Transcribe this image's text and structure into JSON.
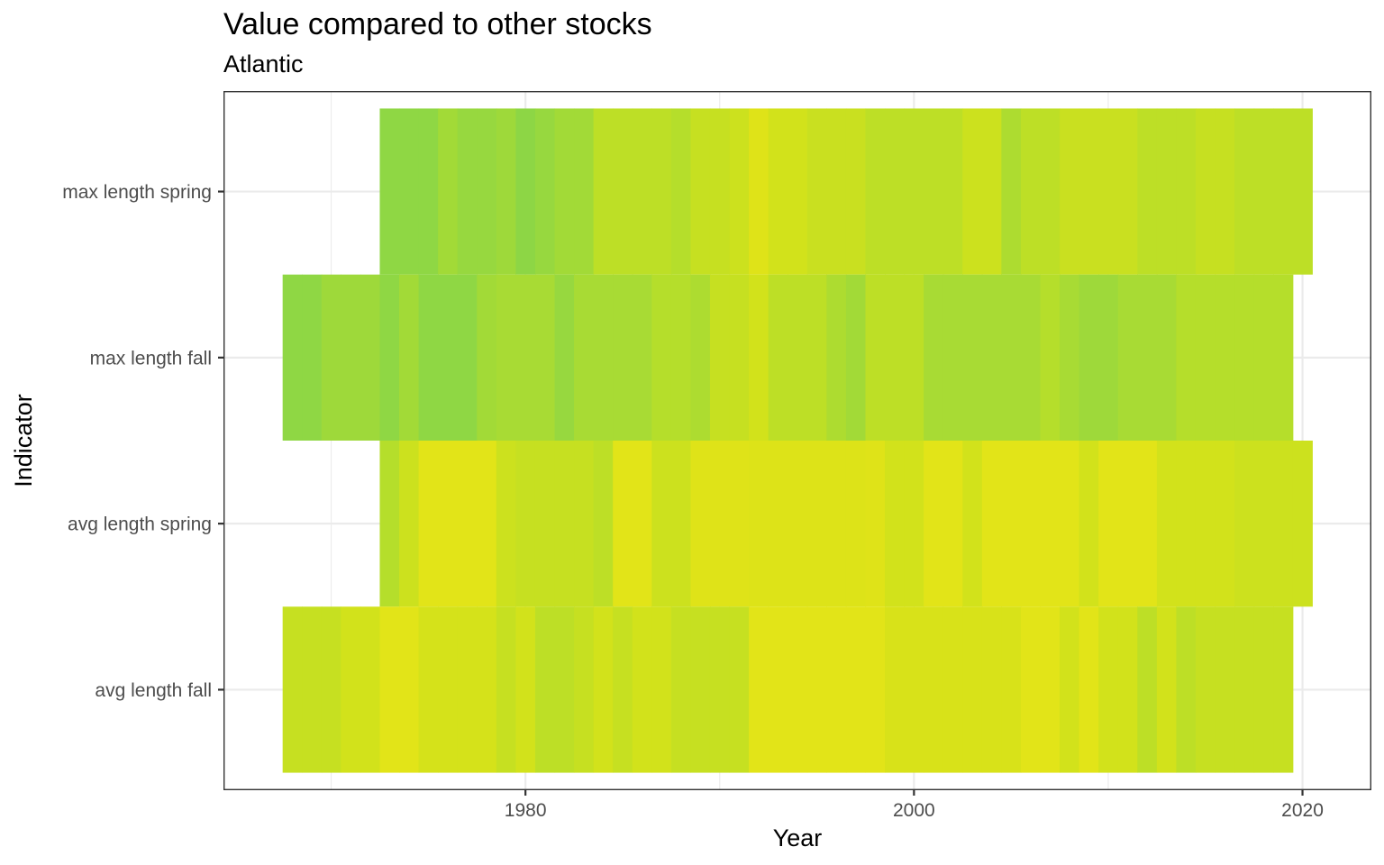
{
  "chart_data": {
    "type": "heatmap",
    "title": "Value compared to other stocks",
    "subtitle": "Atlantic",
    "xlabel": "Year",
    "ylabel": "Indicator",
    "xlim": [
      1964.5,
      2023.5
    ],
    "x_ticks": [
      1980,
      2000,
      2020
    ],
    "x_tick_labels": [
      "1980",
      "2000",
      "2020"
    ],
    "x_minor_ticks": [
      1970,
      1990,
      2010
    ],
    "y_categories": [
      "avg length fall",
      "avg length spring",
      "max length fall",
      "max length spring"
    ],
    "grid": true,
    "legend": "none",
    "series": [
      {
        "name": "max length spring",
        "cells": [
          {
            "year": 1973,
            "color": "#8fd744"
          },
          {
            "year": 1974,
            "color": "#8fd744"
          },
          {
            "year": 1975,
            "color": "#8fd744"
          },
          {
            "year": 1976,
            "color": "#a2da37"
          },
          {
            "year": 1977,
            "color": "#97d83f"
          },
          {
            "year": 1978,
            "color": "#97d83f"
          },
          {
            "year": 1979,
            "color": "#9ed93a"
          },
          {
            "year": 1980,
            "color": "#8dd645"
          },
          {
            "year": 1981,
            "color": "#97d83f"
          },
          {
            "year": 1982,
            "color": "#a2da37"
          },
          {
            "year": 1983,
            "color": "#a2da37"
          },
          {
            "year": 1984,
            "color": "#bddf26"
          },
          {
            "year": 1985,
            "color": "#bddf26"
          },
          {
            "year": 1986,
            "color": "#bddf26"
          },
          {
            "year": 1987,
            "color": "#bddf26"
          },
          {
            "year": 1988,
            "color": "#b5de2b"
          },
          {
            "year": 1989,
            "color": "#c6e021"
          },
          {
            "year": 1990,
            "color": "#c6e021"
          },
          {
            "year": 1991,
            "color": "#cce11e"
          },
          {
            "year": 1992,
            "color": "#dfe318"
          },
          {
            "year": 1993,
            "color": "#d2e21b"
          },
          {
            "year": 1994,
            "color": "#d2e21b"
          },
          {
            "year": 1995,
            "color": "#c9e020"
          },
          {
            "year": 1996,
            "color": "#c9e020"
          },
          {
            "year": 1997,
            "color": "#c9e020"
          },
          {
            "year": 1998,
            "color": "#bddf26"
          },
          {
            "year": 1999,
            "color": "#bddf26"
          },
          {
            "year": 2000,
            "color": "#bddf26"
          },
          {
            "year": 2001,
            "color": "#bddf26"
          },
          {
            "year": 2002,
            "color": "#bddf26"
          },
          {
            "year": 2003,
            "color": "#cce11e"
          },
          {
            "year": 2004,
            "color": "#cce11e"
          },
          {
            "year": 2005,
            "color": "#addc30"
          },
          {
            "year": 2006,
            "color": "#bddf26"
          },
          {
            "year": 2007,
            "color": "#bddf26"
          },
          {
            "year": 2008,
            "color": "#c9e020"
          },
          {
            "year": 2009,
            "color": "#c9e020"
          },
          {
            "year": 2010,
            "color": "#c9e020"
          },
          {
            "year": 2011,
            "color": "#c9e020"
          },
          {
            "year": 2012,
            "color": "#bddf26"
          },
          {
            "year": 2013,
            "color": "#bddf26"
          },
          {
            "year": 2014,
            "color": "#bddf26"
          },
          {
            "year": 2015,
            "color": "#c6e021"
          },
          {
            "year": 2016,
            "color": "#c6e021"
          },
          {
            "year": 2017,
            "color": "#bddf26"
          },
          {
            "year": 2018,
            "color": "#bddf26"
          },
          {
            "year": 2019,
            "color": "#bddf26"
          },
          {
            "year": 2020,
            "color": "#bddf26"
          }
        ]
      },
      {
        "name": "max length fall",
        "cells": [
          {
            "year": 1968,
            "color": "#8fd744"
          },
          {
            "year": 1969,
            "color": "#8fd744"
          },
          {
            "year": 1970,
            "color": "#9ed93a"
          },
          {
            "year": 1971,
            "color": "#9ed93a"
          },
          {
            "year": 1972,
            "color": "#9ed93a"
          },
          {
            "year": 1973,
            "color": "#8fd744"
          },
          {
            "year": 1974,
            "color": "#a2da37"
          },
          {
            "year": 1975,
            "color": "#8fd744"
          },
          {
            "year": 1976,
            "color": "#8fd744"
          },
          {
            "year": 1977,
            "color": "#8fd744"
          },
          {
            "year": 1978,
            "color": "#a2da37"
          },
          {
            "year": 1979,
            "color": "#a8db34"
          },
          {
            "year": 1980,
            "color": "#a8db34"
          },
          {
            "year": 1981,
            "color": "#a8db34"
          },
          {
            "year": 1982,
            "color": "#97d83f"
          },
          {
            "year": 1983,
            "color": "#a8db34"
          },
          {
            "year": 1984,
            "color": "#a8db34"
          },
          {
            "year": 1985,
            "color": "#a8db34"
          },
          {
            "year": 1986,
            "color": "#a8db34"
          },
          {
            "year": 1987,
            "color": "#b5de2b"
          },
          {
            "year": 1988,
            "color": "#b5de2b"
          },
          {
            "year": 1989,
            "color": "#addc30"
          },
          {
            "year": 1990,
            "color": "#c6e021"
          },
          {
            "year": 1991,
            "color": "#c6e021"
          },
          {
            "year": 1992,
            "color": "#d2e21b"
          },
          {
            "year": 1993,
            "color": "#bddf26"
          },
          {
            "year": 1994,
            "color": "#bddf26"
          },
          {
            "year": 1995,
            "color": "#bddf26"
          },
          {
            "year": 1996,
            "color": "#addc30"
          },
          {
            "year": 1997,
            "color": "#a2da37"
          },
          {
            "year": 1998,
            "color": "#bddf26"
          },
          {
            "year": 1999,
            "color": "#bddf26"
          },
          {
            "year": 2000,
            "color": "#bddf26"
          },
          {
            "year": 2001,
            "color": "#a8db34"
          },
          {
            "year": 2002,
            "color": "#a8db34"
          },
          {
            "year": 2003,
            "color": "#a8db34"
          },
          {
            "year": 2004,
            "color": "#a8db34"
          },
          {
            "year": 2005,
            "color": "#a8db34"
          },
          {
            "year": 2006,
            "color": "#a8db34"
          },
          {
            "year": 2007,
            "color": "#b5de2b"
          },
          {
            "year": 2008,
            "color": "#a8db34"
          },
          {
            "year": 2009,
            "color": "#9ed93a"
          },
          {
            "year": 2010,
            "color": "#9ed93a"
          },
          {
            "year": 2011,
            "color": "#a8db34"
          },
          {
            "year": 2012,
            "color": "#a8db34"
          },
          {
            "year": 2013,
            "color": "#a8db34"
          },
          {
            "year": 2014,
            "color": "#b5de2b"
          },
          {
            "year": 2015,
            "color": "#b5de2b"
          },
          {
            "year": 2016,
            "color": "#b5de2b"
          },
          {
            "year": 2017,
            "color": "#b5de2b"
          },
          {
            "year": 2018,
            "color": "#b5de2b"
          },
          {
            "year": 2019,
            "color": "#b5de2b"
          }
        ]
      },
      {
        "name": "avg length spring",
        "cells": [
          {
            "year": 1973,
            "color": "#b5de2b"
          },
          {
            "year": 1974,
            "color": "#cce11e"
          },
          {
            "year": 1975,
            "color": "#e2e418"
          },
          {
            "year": 1976,
            "color": "#e2e418"
          },
          {
            "year": 1977,
            "color": "#e2e418"
          },
          {
            "year": 1978,
            "color": "#e2e418"
          },
          {
            "year": 1979,
            "color": "#cce11e"
          },
          {
            "year": 1980,
            "color": "#c6e021"
          },
          {
            "year": 1981,
            "color": "#c6e021"
          },
          {
            "year": 1982,
            "color": "#c6e021"
          },
          {
            "year": 1983,
            "color": "#c6e021"
          },
          {
            "year": 1984,
            "color": "#bddf26"
          },
          {
            "year": 1985,
            "color": "#e2e418"
          },
          {
            "year": 1986,
            "color": "#e2e418"
          },
          {
            "year": 1987,
            "color": "#cce11e"
          },
          {
            "year": 1988,
            "color": "#cce11e"
          },
          {
            "year": 1989,
            "color": "#dfe318"
          },
          {
            "year": 1990,
            "color": "#dfe318"
          },
          {
            "year": 1991,
            "color": "#dfe318"
          },
          {
            "year": 1992,
            "color": "#dde318"
          },
          {
            "year": 1993,
            "color": "#dde318"
          },
          {
            "year": 1994,
            "color": "#dde318"
          },
          {
            "year": 1995,
            "color": "#dde318"
          },
          {
            "year": 1996,
            "color": "#dde318"
          },
          {
            "year": 1997,
            "color": "#dde318"
          },
          {
            "year": 1998,
            "color": "#dfe318"
          },
          {
            "year": 1999,
            "color": "#d2e21b"
          },
          {
            "year": 2000,
            "color": "#d2e21b"
          },
          {
            "year": 2001,
            "color": "#e2e418"
          },
          {
            "year": 2002,
            "color": "#e2e418"
          },
          {
            "year": 2003,
            "color": "#d2e21b"
          },
          {
            "year": 2004,
            "color": "#e2e418"
          },
          {
            "year": 2005,
            "color": "#e2e418"
          },
          {
            "year": 2006,
            "color": "#e2e418"
          },
          {
            "year": 2007,
            "color": "#e2e418"
          },
          {
            "year": 2008,
            "color": "#e2e418"
          },
          {
            "year": 2009,
            "color": "#d2e21b"
          },
          {
            "year": 2010,
            "color": "#e2e418"
          },
          {
            "year": 2011,
            "color": "#e2e418"
          },
          {
            "year": 2012,
            "color": "#e2e418"
          },
          {
            "year": 2013,
            "color": "#d2e21b"
          },
          {
            "year": 2014,
            "color": "#d2e21b"
          },
          {
            "year": 2015,
            "color": "#d2e21b"
          },
          {
            "year": 2016,
            "color": "#d2e21b"
          },
          {
            "year": 2017,
            "color": "#cce11e"
          },
          {
            "year": 2018,
            "color": "#cce11e"
          },
          {
            "year": 2019,
            "color": "#cce11e"
          },
          {
            "year": 2020,
            "color": "#cce11e"
          }
        ]
      },
      {
        "name": "avg length fall",
        "cells": [
          {
            "year": 1968,
            "color": "#c6e021"
          },
          {
            "year": 1969,
            "color": "#c6e021"
          },
          {
            "year": 1970,
            "color": "#c6e021"
          },
          {
            "year": 1971,
            "color": "#d2e21b"
          },
          {
            "year": 1972,
            "color": "#d2e21b"
          },
          {
            "year": 1973,
            "color": "#e2e418"
          },
          {
            "year": 1974,
            "color": "#e2e418"
          },
          {
            "year": 1975,
            "color": "#d5e21a"
          },
          {
            "year": 1976,
            "color": "#d5e21a"
          },
          {
            "year": 1977,
            "color": "#d5e21a"
          },
          {
            "year": 1978,
            "color": "#d5e21a"
          },
          {
            "year": 1979,
            "color": "#c6e021"
          },
          {
            "year": 1980,
            "color": "#d2e21b"
          },
          {
            "year": 1981,
            "color": "#bddf26"
          },
          {
            "year": 1982,
            "color": "#bddf26"
          },
          {
            "year": 1983,
            "color": "#c6e021"
          },
          {
            "year": 1984,
            "color": "#d2e21b"
          },
          {
            "year": 1985,
            "color": "#c6e021"
          },
          {
            "year": 1986,
            "color": "#d2e21b"
          },
          {
            "year": 1987,
            "color": "#d2e21b"
          },
          {
            "year": 1988,
            "color": "#c6e021"
          },
          {
            "year": 1989,
            "color": "#c6e021"
          },
          {
            "year": 1990,
            "color": "#c6e021"
          },
          {
            "year": 1991,
            "color": "#c6e021"
          },
          {
            "year": 1992,
            "color": "#e2e418"
          },
          {
            "year": 1993,
            "color": "#e2e418"
          },
          {
            "year": 1994,
            "color": "#e2e418"
          },
          {
            "year": 1995,
            "color": "#e2e418"
          },
          {
            "year": 1996,
            "color": "#e2e418"
          },
          {
            "year": 1997,
            "color": "#e2e418"
          },
          {
            "year": 1998,
            "color": "#e2e418"
          },
          {
            "year": 1999,
            "color": "#d8e219"
          },
          {
            "year": 2000,
            "color": "#d8e219"
          },
          {
            "year": 2001,
            "color": "#d8e219"
          },
          {
            "year": 2002,
            "color": "#d8e219"
          },
          {
            "year": 2003,
            "color": "#d8e219"
          },
          {
            "year": 2004,
            "color": "#d8e219"
          },
          {
            "year": 2005,
            "color": "#d8e219"
          },
          {
            "year": 2006,
            "color": "#e2e418"
          },
          {
            "year": 2007,
            "color": "#e2e418"
          },
          {
            "year": 2008,
            "color": "#d2e21b"
          },
          {
            "year": 2009,
            "color": "#e2e418"
          },
          {
            "year": 2010,
            "color": "#d2e21b"
          },
          {
            "year": 2011,
            "color": "#d2e21b"
          },
          {
            "year": 2012,
            "color": "#bddf26"
          },
          {
            "year": 2013,
            "color": "#d2e21b"
          },
          {
            "year": 2014,
            "color": "#bddf26"
          },
          {
            "year": 2015,
            "color": "#c6e021"
          },
          {
            "year": 2016,
            "color": "#c6e021"
          },
          {
            "year": 2017,
            "color": "#c6e021"
          },
          {
            "year": 2018,
            "color": "#c6e021"
          },
          {
            "year": 2019,
            "color": "#c6e021"
          }
        ]
      }
    ]
  }
}
